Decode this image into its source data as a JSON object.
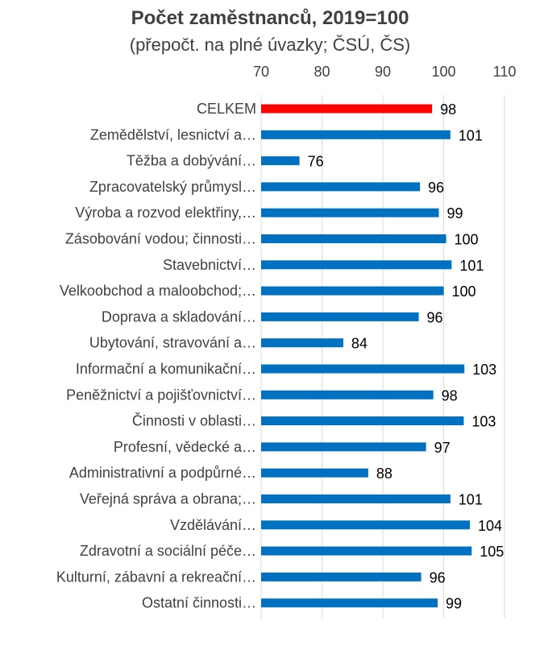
{
  "chart_data": {
    "type": "bar",
    "orientation": "horizontal",
    "title": "Počet zaměstnanců, 2019=100",
    "subtitle": "(přepočt. na plné úvazky; ČSÚ, ČS)",
    "xlim": [
      70,
      110
    ],
    "xticks": [
      70,
      80,
      90,
      100,
      110
    ],
    "grid": true,
    "axis_position": "top",
    "categories": [
      "CELKEM",
      "Zemědělství, lesnictví a…",
      "Těžba a dobývání…",
      "Zpracovatelský průmysl…",
      "Výroba a rozvod elektřiny,…",
      "Zásobování vodou; činnosti…",
      "Stavebnictví…",
      "Velkoobchod a maloobchod;…",
      "Doprava a skladování…",
      "Ubytování, stravování a…",
      "Informační a komunikační…",
      "Peněžnictví a pojišťovnictví…",
      "Činnosti v oblasti…",
      "Profesní, vědecké a…",
      "Administrativní a podpůrné…",
      "Veřejná správa a obrana;…",
      "Vzdělávání…",
      "Zdravotní a sociální péče…",
      "Kulturní, zábavní a rekreační…",
      "Ostatní činnosti…"
    ],
    "values": [
      98.1,
      101.1,
      76.3,
      96.1,
      99.2,
      100.4,
      101.3,
      100.0,
      95.9,
      83.5,
      103.4,
      98.3,
      103.3,
      97.1,
      87.6,
      101.1,
      104.3,
      104.6,
      96.3,
      99.0
    ],
    "value_labels": [
      "98",
      "101",
      "76",
      "96",
      "99",
      "100",
      "101",
      "100",
      "96",
      "84",
      "103",
      "98",
      "103",
      "97",
      "88",
      "101",
      "104",
      "105",
      "96",
      "99"
    ],
    "colors": {
      "highlight": "#ff0000",
      "bar": "#0070c0"
    },
    "highlight_index": 0
  }
}
